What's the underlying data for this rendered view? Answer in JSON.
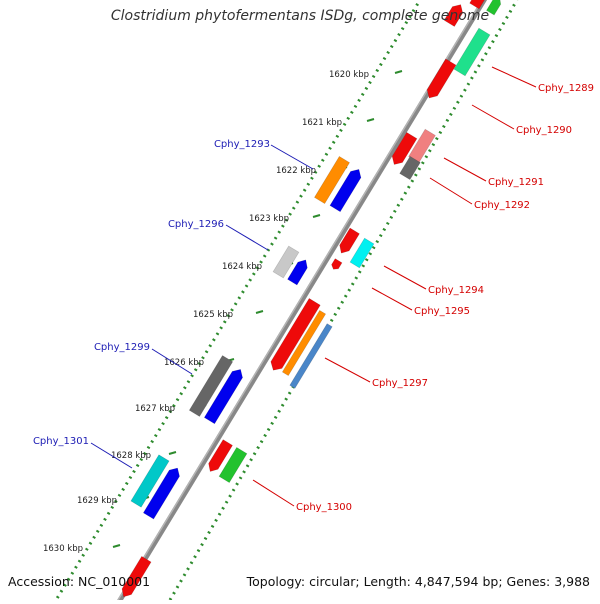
{
  "title": "Clostridium phytofermentans ISDg, complete genome",
  "footer": {
    "accession": "Accession: NC_010001",
    "summary": "Topology: circular; Length: 4,847,594 bp; Genes: 3,988"
  },
  "colors": {
    "backbone": "#888888",
    "dotted_track": "#2e8b2e",
    "label_left": "#1c1cb4",
    "label_right": "#d40000",
    "kbp_text": "#222222"
  },
  "kbp_ticks": [
    "1620 kbp",
    "1621 kbp",
    "1622 kbp",
    "1623 kbp",
    "1624 kbp",
    "1625 kbp",
    "1626 kbp",
    "1627 kbp",
    "1628 kbp",
    "1629 kbp",
    "1630 kbp"
  ],
  "genes": [
    {
      "id": "g-top-green",
      "color": "#22c22e"
    },
    {
      "id": "g-top-red",
      "color": "#ee0a0a"
    },
    {
      "id": "cphy-1289",
      "label": "Cphy_1289",
      "color": "#ee0a0a"
    },
    {
      "id": "cphy-1290",
      "label": "Cphy_1290",
      "color": "#1fe08c"
    },
    {
      "id": "g-1290b",
      "color": "#ee0a0a"
    },
    {
      "id": "cphy-1291",
      "label": "Cphy_1291",
      "color": "#ee0a0a"
    },
    {
      "id": "cphy-1292",
      "label": "Cphy_1292",
      "color": "#f08080"
    },
    {
      "id": "g-1292b",
      "color": "#666666"
    },
    {
      "id": "cphy-1293",
      "label": "Cphy_1293",
      "color": "#ff8c00"
    },
    {
      "id": "g-1293b",
      "color": "#0000ee"
    },
    {
      "id": "cphy-1294",
      "label": "Cphy_1294",
      "color": "#ee0a0a"
    },
    {
      "id": "g-1294b",
      "color": "#ee0a0a"
    },
    {
      "id": "cphy-1295",
      "label": "Cphy_1295",
      "color": "#00f0f0"
    },
    {
      "id": "cphy-1296",
      "label": "Cphy_1296",
      "color": "#c8c8c8"
    },
    {
      "id": "g-1296b",
      "color": "#0000ee"
    },
    {
      "id": "cphy-1297",
      "label": "Cphy_1297",
      "color": "#ee0a0a"
    },
    {
      "id": "g-1297b",
      "color": "#ff8c00"
    },
    {
      "id": "g-1297c",
      "color": "#4a86c8"
    },
    {
      "id": "cphy-1299",
      "label": "Cphy_1299",
      "color": "#666666"
    },
    {
      "id": "g-1299b",
      "color": "#0000ee"
    },
    {
      "id": "cphy-1300",
      "label": "Cphy_1300",
      "color": "#22c22e"
    },
    {
      "id": "g-1300b",
      "color": "#ee0a0a"
    },
    {
      "id": "cphy-1301",
      "label": "Cphy_1301",
      "color": "#00c8c8"
    },
    {
      "id": "g-1301b",
      "color": "#0000ee"
    },
    {
      "id": "g-bottom",
      "color": "#ee0a0a"
    }
  ]
}
